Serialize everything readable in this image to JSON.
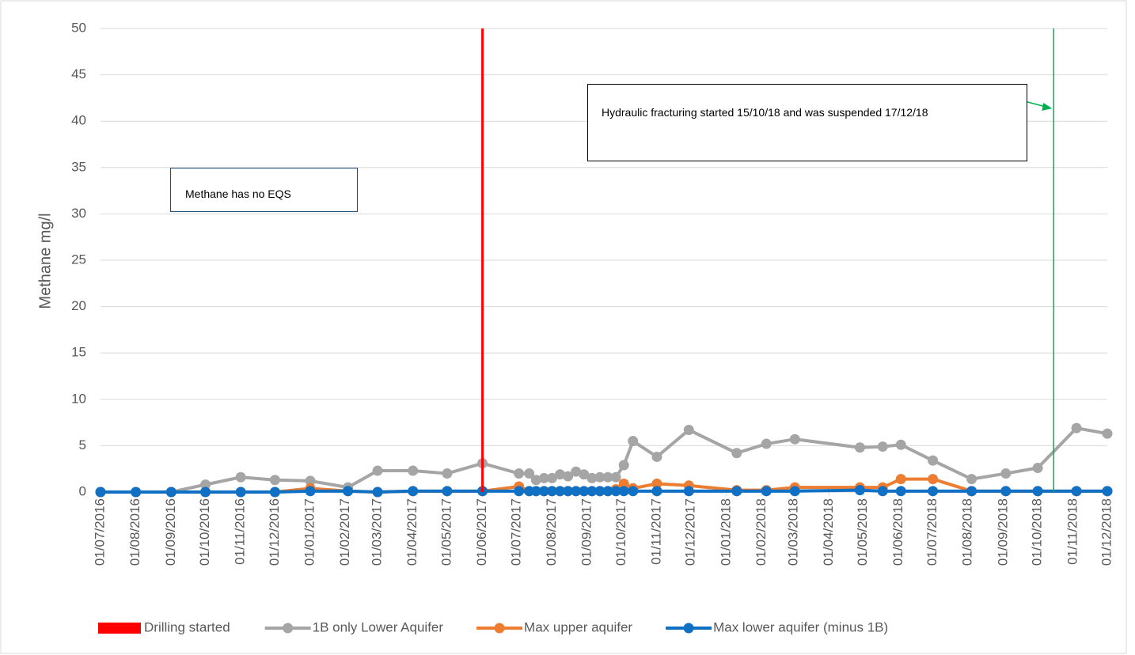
{
  "chart_data": {
    "type": "line",
    "y_label": "Methane mg/l",
    "x": [
      "01/07/2016",
      "01/08/2016",
      "01/09/2016",
      "01/10/2016",
      "01/11/2016",
      "01/12/2016",
      "01/01/2017",
      "03/02/2017",
      "01/03/2017",
      "01/04/2017",
      "01/05/2017",
      "01/06/2017",
      "03/07/2017",
      "12/07/2017",
      "18/07/2017",
      "25/07/2017",
      "01/08/2017",
      "08/08/2017",
      "15/08/2017",
      "22/08/2017",
      "29/08/2017",
      "05/09/2017",
      "12/09/2017",
      "19/09/2017",
      "26/09/2017",
      "03/10/2017",
      "11/10/2017",
      "01/11/2017",
      "29/11/2017",
      "10/01/2018",
      "05/02/2018",
      "02/03/2018",
      "28/04/2018",
      "18/05/2018",
      "03/06/2018",
      "01/07/2018",
      "04/08/2018",
      "03/09/2018",
      "01/10/2018",
      "04/11/2018",
      "01/12/2018"
    ],
    "series": [
      {
        "name": "1B only Lower Aquifer",
        "color": "#a5a5a5",
        "values": [
          0,
          0,
          0,
          0.8,
          1.6,
          1.3,
          1.2,
          0.5,
          2.3,
          2.3,
          2.0,
          3.1,
          2.0,
          2.0,
          1.3,
          1.5,
          1.5,
          1.9,
          1.7,
          2.2,
          1.9,
          1.5,
          1.6,
          1.6,
          1.6,
          2.9,
          5.5,
          3.8,
          6.7,
          4.2,
          5.2,
          5.7,
          4.8,
          4.9,
          5.1,
          3.4,
          1.4,
          2.0,
          2.6,
          6.9,
          6.3
        ]
      },
      {
        "name": "Max upper aquifer",
        "color": "#ed7d31",
        "values": [
          0,
          0,
          0,
          0,
          0,
          0,
          0.4,
          0.1,
          0,
          0.1,
          0.1,
          0.1,
          0.6,
          0.1,
          0.1,
          0.1,
          0.1,
          0.1,
          0.1,
          0.1,
          0.1,
          0.1,
          0.1,
          0.1,
          0.3,
          0.9,
          0.4,
          0.9,
          0.7,
          0.2,
          0.2,
          0.5,
          0.5,
          0.5,
          1.4,
          1.4,
          0.1,
          0.1,
          0.1,
          0.1,
          0.1
        ]
      },
      {
        "name": "Max lower aquifer (minus 1B)",
        "color": "#1070c4",
        "values": [
          0,
          0,
          0,
          0,
          0,
          0,
          0.1,
          0.1,
          0,
          0.1,
          0.1,
          0.1,
          0.1,
          0.1,
          0.1,
          0.1,
          0.1,
          0.1,
          0.1,
          0.1,
          0.1,
          0.1,
          0.1,
          0.1,
          0.1,
          0.1,
          0.1,
          0.1,
          0.1,
          0.1,
          0.1,
          0.1,
          0.2,
          0.1,
          0.1,
          0.1,
          0.1,
          0.1,
          0.1,
          0.1,
          0.1
        ]
      }
    ],
    "vlines": [
      {
        "name": "Drilling started",
        "x": "01/06/2017",
        "color": "#ff0000"
      }
    ],
    "annotations": [
      {
        "text": "Methane has no EQS",
        "color": "#1f4e79"
      },
      {
        "text": "Hydraulic fracturing started 15/10/18 and was suspended 17/12/18",
        "line_x": "15/10/2018",
        "color": "#00b050"
      }
    ],
    "xlim": [
      "01/07/2016",
      "01/12/2018"
    ],
    "xticks": [
      "01/07/2016",
      "01/08/2016",
      "01/09/2016",
      "01/10/2016",
      "01/11/2016",
      "01/12/2016",
      "01/01/2017",
      "01/02/2017",
      "01/03/2017",
      "01/04/2017",
      "01/05/2017",
      "01/06/2017",
      "01/07/2017",
      "01/08/2017",
      "01/09/2017",
      "01/10/2017",
      "01/11/2017",
      "01/12/2017",
      "01/01/2018",
      "01/02/2018",
      "01/03/2018",
      "01/04/2018",
      "01/05/2018",
      "01/06/2018",
      "01/07/2018",
      "01/08/2018",
      "01/09/2018",
      "01/10/2018",
      "01/11/2018",
      "01/12/2018"
    ],
    "ylim": [
      0,
      50
    ],
    "yticks": [
      0,
      5,
      10,
      15,
      20,
      25,
      30,
      35,
      40,
      45,
      50
    ],
    "grid": true,
    "legend": "bottom"
  }
}
